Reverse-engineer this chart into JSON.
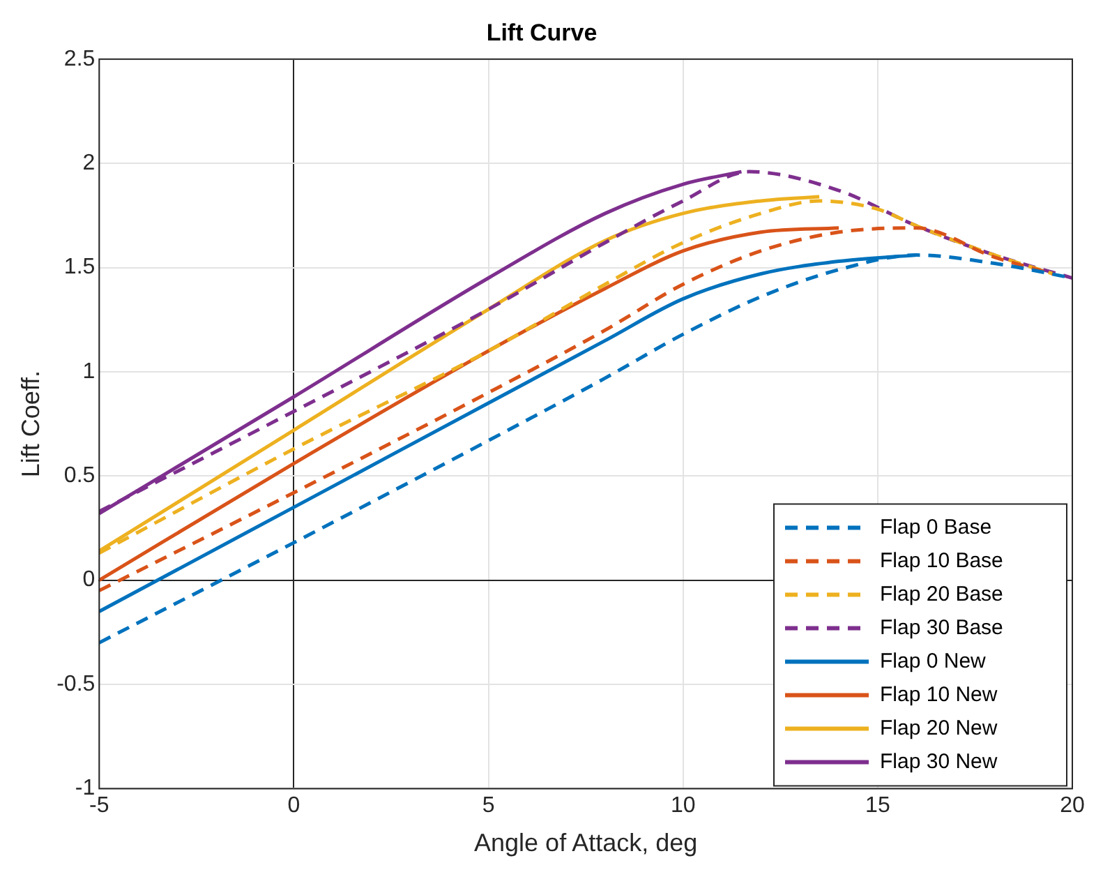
{
  "chart_data": {
    "type": "line",
    "title": "Lift Curve",
    "xlabel": "Angle of Attack, deg",
    "ylabel": "Lift Coeff.",
    "xlim": [
      -5,
      20
    ],
    "xticks": [
      -5,
      0,
      5,
      10,
      15,
      20
    ],
    "ylim": [
      -1,
      2.5
    ],
    "yticks": [
      -1,
      -0.5,
      0,
      0.5,
      1,
      1.5,
      2,
      2.5
    ],
    "grid": true,
    "legend": "bottom right",
    "marker": "none",
    "series": [
      {
        "name": "Flap 0 Base",
        "color": "#0072bd",
        "line_style": "dashed",
        "x": [
          -5,
          0,
          5,
          8,
          10,
          12,
          14,
          16,
          18,
          20
        ],
        "values": [
          -0.3,
          0.18,
          0.67,
          0.97,
          1.18,
          1.36,
          1.49,
          1.56,
          1.52,
          1.45
        ]
      },
      {
        "name": "Flap 10 Base",
        "color": "#d95319",
        "line_style": "dashed",
        "x": [
          -5,
          0,
          5,
          8,
          10,
          12,
          14,
          16,
          18,
          19.5
        ],
        "values": [
          -0.05,
          0.42,
          0.9,
          1.2,
          1.42,
          1.58,
          1.67,
          1.69,
          1.55,
          1.47
        ]
      },
      {
        "name": "Flap 20 Base",
        "color": "#edb120",
        "line_style": "dashed",
        "x": [
          -5,
          0,
          5,
          8,
          10,
          12,
          13.5,
          15,
          16,
          18,
          19.5
        ],
        "values": [
          0.13,
          0.63,
          1.1,
          1.42,
          1.62,
          1.76,
          1.82,
          1.78,
          1.7,
          1.56,
          1.47
        ]
      },
      {
        "name": "Flap 30 Base",
        "color": "#7e2f8e",
        "line_style": "dashed",
        "x": [
          -5,
          0,
          5,
          8,
          10,
          11.7,
          14,
          16,
          18,
          20
        ],
        "values": [
          0.33,
          0.81,
          1.3,
          1.62,
          1.82,
          1.96,
          1.87,
          1.7,
          1.56,
          1.45
        ]
      },
      {
        "name": "Flap 0 New",
        "color": "#0072bd",
        "line_style": "solid",
        "x": [
          -5,
          0,
          5,
          8,
          10,
          12,
          14,
          16
        ],
        "values": [
          -0.15,
          0.35,
          0.85,
          1.15,
          1.35,
          1.47,
          1.53,
          1.56
        ]
      },
      {
        "name": "Flap 10 New",
        "color": "#d95319",
        "line_style": "solid",
        "x": [
          -5,
          0,
          5,
          8,
          10,
          12,
          14
        ],
        "values": [
          0,
          0.56,
          1.1,
          1.4,
          1.58,
          1.67,
          1.69
        ]
      },
      {
        "name": "Flap 20 New",
        "color": "#edb120",
        "line_style": "solid",
        "x": [
          -5,
          0,
          5,
          8,
          10,
          12,
          13.5
        ],
        "values": [
          0.14,
          0.72,
          1.3,
          1.63,
          1.76,
          1.82,
          1.84
        ]
      },
      {
        "name": "Flap 30 New",
        "color": "#7e2f8e",
        "line_style": "solid",
        "x": [
          -5,
          0,
          5,
          8,
          10,
          11.5
        ],
        "values": [
          0.32,
          0.88,
          1.45,
          1.76,
          1.9,
          1.96
        ]
      }
    ]
  }
}
